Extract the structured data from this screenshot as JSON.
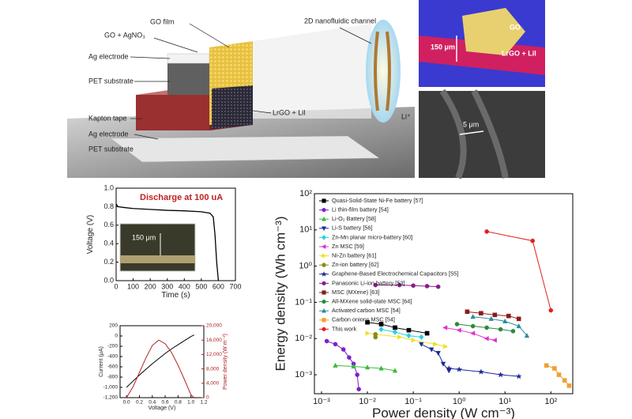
{
  "schematic": {
    "labels": [
      "GO film",
      "GO + AgNO₃",
      "Ag electrode",
      "PET substrate",
      "Kapton tape",
      "Ag electrode",
      "PET substrate",
      "2D nanofluidic channel",
      "LrGO + LiI",
      "Li⁺"
    ]
  },
  "sem": {
    "top_labels": [
      "GO",
      "150 μm",
      "LrGO + LiI"
    ],
    "bottom_labels": [
      "5 μm"
    ]
  },
  "chart_data": [
    {
      "type": "line",
      "annotation": "Discharge at 100 uA",
      "inset_label": "150 μm",
      "x_label": "Time (s)",
      "y_label": "Voltage (V)",
      "color": "#000000",
      "x": [
        0,
        10,
        50,
        100,
        200,
        300,
        400,
        500,
        550,
        570,
        580,
        590,
        600
      ],
      "values": [
        0.83,
        0.8,
        0.79,
        0.78,
        0.77,
        0.76,
        0.755,
        0.745,
        0.73,
        0.69,
        0.5,
        0.2,
        0.0
      ],
      "xlim": [
        0,
        700
      ],
      "xticks": [
        0,
        100,
        200,
        300,
        400,
        500,
        600,
        700
      ],
      "ylim": [
        0,
        1.0
      ],
      "yticks": [
        {
          "value": 0,
          "label": "0.0"
        },
        0.2,
        0.4,
        0.6,
        0.8,
        {
          "value": 1,
          "label": "1.0"
        }
      ]
    },
    {
      "type": "line",
      "x_label": "Voltage (V)",
      "y_label": "Current (μA)",
      "y2_label": "Power density (W m⁻²)",
      "x": [
        0,
        0.1,
        0.2,
        0.3,
        0.4,
        0.5,
        0.6,
        0.7,
        0.8,
        0.9,
        1.0,
        1.05
      ],
      "series": [
        {
          "name": "Current",
          "color": "#000000",
          "values": [
            -1000,
            -880,
            -760,
            -650,
            -540,
            -440,
            -340,
            -250,
            -170,
            -90,
            -10,
            20
          ]
        },
        {
          "name": "Power density",
          "color": "#b22222",
          "axis": "y2",
          "values": [
            0,
            3000,
            7000,
            11000,
            14500,
            16000,
            15000,
            12500,
            9000,
            5000,
            800,
            0
          ]
        }
      ],
      "xlim": [
        -0.1,
        1.2
      ],
      "xticks": [
        {
          "value": 0,
          "label": "0.0"
        },
        0.2,
        0.4,
        0.6,
        0.8,
        {
          "value": 1,
          "label": "1.0"
        },
        1.2
      ],
      "ylim": [
        -1200,
        200
      ],
      "yticks": [
        {
          "value": -1200,
          "label": "-1,200"
        },
        {
          "value": -1000,
          "label": "-1,000"
        },
        -800,
        -600,
        -400,
        -200,
        0,
        200
      ],
      "y2lim": [
        0,
        20000
      ],
      "y2ticks": [
        0,
        {
          "value": 4000,
          "label": "4,000"
        },
        {
          "value": 8000,
          "label": "8,000"
        },
        {
          "value": 12000,
          "label": "12,000"
        },
        {
          "value": 16000,
          "label": "16,000"
        },
        {
          "value": 20000,
          "label": "20,000"
        }
      ]
    },
    {
      "type": "scatter",
      "x_label": "Power density (W cm⁻³)",
      "y_label": "Energy density (Wh cm⁻³)",
      "log_x": true,
      "log_y": true,
      "legend": "upper left",
      "xlim": [
        0.0007,
        300
      ],
      "ylim": [
        0.0003,
        100
      ],
      "xticks": [
        {
          "value": 0.001,
          "label": "10⁻³"
        },
        {
          "value": 0.01,
          "label": "10⁻²"
        },
        {
          "value": 0.1,
          "label": "10⁻¹"
        },
        {
          "value": 1,
          "label": "10⁰"
        },
        {
          "value": 10,
          "label": "10¹"
        },
        {
          "value": 100,
          "label": "10²"
        }
      ],
      "yticks": [
        {
          "value": 0.001,
          "label": "10⁻³"
        },
        {
          "value": 0.01,
          "label": "10⁻²"
        },
        {
          "value": 0.1,
          "label": "10⁻¹"
        },
        {
          "value": 1,
          "label": "10⁰"
        },
        {
          "value": 10,
          "label": "10¹"
        },
        {
          "value": 100,
          "label": "10²"
        }
      ],
      "series": [
        {
          "name": "Quasi-Solid-State Ni-Fe battery [57]",
          "color": "#000000",
          "marker": "square",
          "x": [
            0.01,
            0.02,
            0.04,
            0.08,
            0.2
          ],
          "values": [
            0.028,
            0.025,
            0.02,
            0.017,
            0.014
          ]
        },
        {
          "name": "Li thin-film battery  [54]",
          "color": "#7b1fd0",
          "marker": "circle",
          "x": [
            0.0013,
            0.002,
            0.003,
            0.004,
            0.005,
            0.006,
            0.0065
          ],
          "values": [
            0.0085,
            0.007,
            0.005,
            0.003,
            0.002,
            0.001,
            0.0004
          ]
        },
        {
          "name": "Li-O₂ Battery [58]",
          "color": "#3cb83c",
          "marker": "triangle-up",
          "x": [
            0.002,
            0.005,
            0.01,
            0.02,
            0.04
          ],
          "values": [
            0.0018,
            0.0017,
            0.0016,
            0.0015,
            0.0013
          ]
        },
        {
          "name": "Li-S battery [56]",
          "color": "#1a2a9a",
          "marker": "triangle-down",
          "x": [
            0.15,
            0.25,
            0.35,
            0.45,
            0.6
          ],
          "values": [
            0.007,
            0.005,
            0.004,
            0.002,
            0.0013
          ]
        },
        {
          "name": "Zn-Mn planar micro-battery [60]",
          "color": "#27d0e0",
          "marker": "diamond",
          "x": [
            0.02,
            0.04,
            0.08,
            0.15
          ],
          "values": [
            0.018,
            0.015,
            0.012,
            0.011
          ]
        },
        {
          "name": "Zn MSC [59]",
          "color": "#e030d0",
          "marker": "triangle-left",
          "x": [
            0.5,
            1,
            2,
            4,
            6
          ],
          "values": [
            0.02,
            0.017,
            0.014,
            0.01,
            0.009
          ]
        },
        {
          "name": "Ni-Zn battery [61]",
          "color": "#f0e020",
          "marker": "triangle-right",
          "x": [
            0.01,
            0.05,
            0.1,
            0.3,
            0.5
          ],
          "values": [
            0.014,
            0.011,
            0.009,
            0.007,
            0.006
          ]
        },
        {
          "name": "Zn-ion battery [62]",
          "color": "#8a8a10",
          "marker": "hexagon",
          "x": [
            0.015,
            0.015
          ],
          "values": [
            0.013,
            0.011
          ]
        },
        {
          "name": "Graphene-Based Electrochemical Capacitors [55]",
          "color": "#1a2a9a",
          "marker": "star",
          "x": [
            0.6,
            1,
            3,
            8,
            20
          ],
          "values": [
            0.0015,
            0.0014,
            0.0012,
            0.001,
            0.0009
          ]
        },
        {
          "name": "Panasonic Li-ion battery [53]",
          "color": "#8a1a8a",
          "marker": "circle",
          "x": [
            0.015,
            0.05,
            0.1,
            0.2,
            0.35
          ],
          "values": [
            0.3,
            0.3,
            0.29,
            0.28,
            0.27
          ]
        },
        {
          "name": "MSC (MXene) [63]",
          "color": "#8a1a1a",
          "marker": "square",
          "x": [
            1.5,
            3,
            6,
            12,
            20
          ],
          "values": [
            0.055,
            0.05,
            0.045,
            0.042,
            0.035
          ]
        },
        {
          "name": "All-MXene solid-state MSC [64]",
          "color": "#2a8a3a",
          "marker": "circle",
          "x": [
            0.9,
            2,
            4,
            8,
            15
          ],
          "values": [
            0.025,
            0.022,
            0.02,
            0.018,
            0.016
          ]
        },
        {
          "name": "Activated carbon MSC [54]",
          "color": "#2a8a9a",
          "marker": "triangle-up",
          "x": [
            2,
            5,
            10,
            20,
            30
          ],
          "values": [
            0.04,
            0.035,
            0.03,
            0.022,
            0.012
          ]
        },
        {
          "name": "Carbon onions MSC [54]",
          "color": "#f0a030",
          "marker": "square",
          "x": [
            80,
            120,
            150,
            200,
            250
          ],
          "values": [
            0.0018,
            0.0015,
            0.001,
            0.0007,
            0.0005
          ]
        },
        {
          "name": "This work",
          "color": "#e02020",
          "marker": "circle",
          "x": [
            4,
            40,
            100
          ],
          "values": [
            9,
            5,
            0.06
          ]
        }
      ]
    }
  ]
}
